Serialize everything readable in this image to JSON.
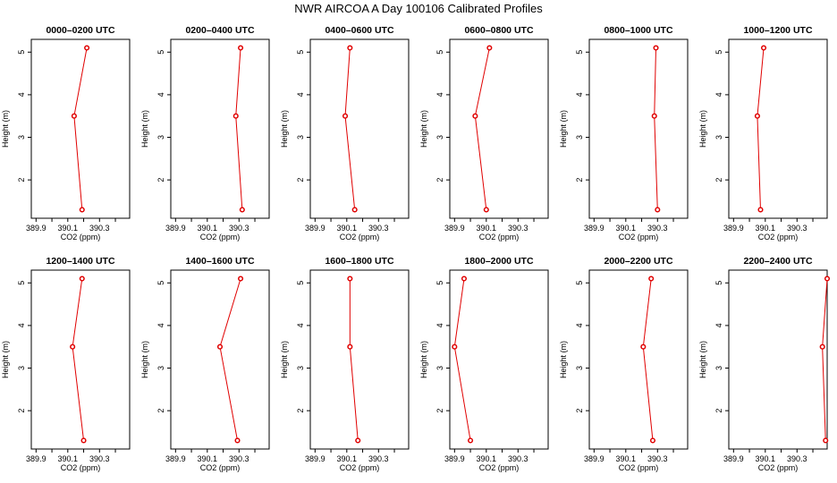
{
  "chart_data": {
    "type": "line",
    "title": "NWR AIRCOA A  Day 100106  Calibrated Profiles",
    "xlabel": "CO2 (ppm)",
    "ylabel": "Height (m)",
    "xlim": [
      389.87,
      390.49
    ],
    "ylim": [
      1.1,
      5.3
    ],
    "xticks": [
      389.9,
      390.0,
      390.1,
      390.2,
      390.3,
      390.4
    ],
    "xtick_labels": [
      "389.9",
      "",
      "390.1",
      "",
      "390.3",
      ""
    ],
    "yticks": [
      2,
      3,
      4,
      5
    ],
    "heights": [
      1.3,
      3.5,
      5.1
    ],
    "panels": [
      {
        "title": "0000–0200 UTC",
        "co2": [
          390.19,
          390.14,
          390.22
        ]
      },
      {
        "title": "0200–0400 UTC",
        "co2": [
          390.32,
          390.28,
          390.31
        ]
      },
      {
        "title": "0400–0600 UTC",
        "co2": [
          390.15,
          390.09,
          390.12
        ]
      },
      {
        "title": "0600–0800 UTC",
        "co2": [
          390.1,
          390.03,
          390.12
        ]
      },
      {
        "title": "0800–1000 UTC",
        "co2": [
          390.3,
          390.28,
          390.29
        ]
      },
      {
        "title": "1000–1200 UTC",
        "co2": [
          390.07,
          390.05,
          390.09
        ]
      },
      {
        "title": "1200–1400 UTC",
        "co2": [
          390.2,
          390.13,
          390.19
        ]
      },
      {
        "title": "1400–1600 UTC",
        "co2": [
          390.29,
          390.18,
          390.31
        ]
      },
      {
        "title": "1600–1800 UTC",
        "co2": [
          390.17,
          390.12,
          390.12
        ]
      },
      {
        "title": "1800–2000 UTC",
        "co2": [
          390.0,
          389.9,
          389.96
        ]
      },
      {
        "title": "2000–2200 UTC",
        "co2": [
          390.27,
          390.21,
          390.26
        ]
      },
      {
        "title": "2200–2400 UTC",
        "co2": [
          390.48,
          390.46,
          390.49
        ]
      }
    ]
  }
}
